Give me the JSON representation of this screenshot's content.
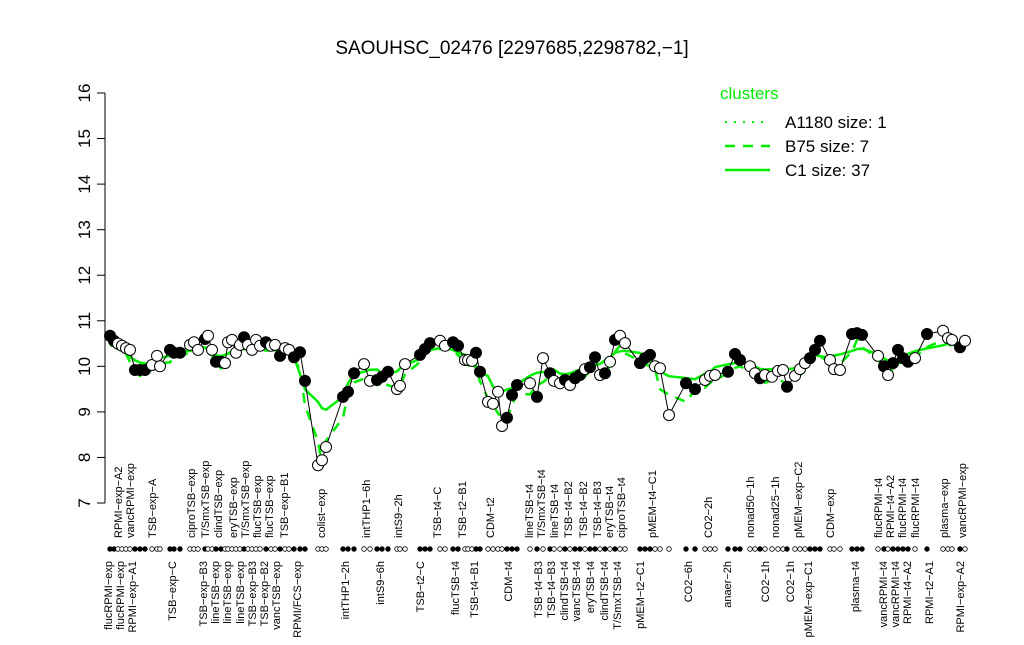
{
  "chart_data": {
    "type": "line",
    "title": "SAOUHSC_02476 [2297685,2298782,−1]",
    "xlabel": "",
    "ylabel": "",
    "ylim": [
      7,
      16
    ],
    "yticks": [
      7,
      8,
      9,
      10,
      11,
      12,
      13,
      14,
      15,
      16
    ],
    "grid": false,
    "legend": {
      "title": "clusters",
      "placement": "top-right",
      "color": "#00ee00",
      "entries": [
        {
          "label": "A1180 size: 1",
          "style": "dotted"
        },
        {
          "label": "B75 size: 7",
          "style": "dashed"
        },
        {
          "label": "C1 size: 37",
          "style": "solid"
        }
      ]
    },
    "colors": {
      "points": "#000000",
      "clusters": "#00ee00"
    },
    "x_labels_top": [
      "RPMI−exp−A2",
      "vancRPMI−exp",
      "TSB−exp−A",
      "ciproTSB−exp",
      "T/SmxTSB−exp",
      "clindTSB−exp",
      "eryTSB−exp",
      "T/SmxTSB−exp",
      "flucTSB−exp",
      "flucTSB−exp",
      "TSB−exp−B1",
      "colist−exp",
      "intTHP1−6h",
      "intS9−2h",
      "TSB−t4−C",
      "TSB−t2−B1",
      "CDM−t2",
      "lineTSB−t4",
      "T/SmxTSB−t4",
      "lineTSB−t4",
      "TSB−t4−B2",
      "TSB−t4−B2",
      "TSB−t4−B3",
      "eryTSB−t4",
      "ciproTSB−t4",
      "pMEM−t4−C1",
      "CO2−2h",
      "nonad50−1h",
      "nonad25−1h",
      "pMEM−exp−C2",
      "CDM−exp",
      "flucRPMI−t4",
      "RPMI−t4−A2",
      "flucRPMI−t4",
      "flucRPMI−t4",
      "plasma−exp",
      "vancRPMI−exp"
    ],
    "x_labels_bottom": [
      "flucRPMI−exp",
      "flucRPMI−exp",
      "RPMI−exp−A1",
      "TSB−exp−C",
      "TSB−exp−B3",
      "lineTSB−exp",
      "lineTSB−exp",
      "lineTSB−exp",
      "TSB−exp−B3",
      "TSB−exp−B2",
      "vancTSB−exp",
      "RPMI/FCS−exp",
      "intTHP1−2h",
      "intS9−6h",
      "TSB−t2−C",
      "flucTSB−t4",
      "TSB−t4−B1",
      "CDM−t4",
      "TSB−t4−B3",
      "TSB−t4−B3",
      "clindTSB−t4",
      "vancTSB−t4",
      "eryTSB−t4",
      "clindTSB−t4",
      "T/SmxTSB−t4",
      "pMEM−t2−C1",
      "CO2−6h",
      "anaer−2h",
      "CO2−1h",
      "CO2−1h",
      "pMEM−exp−C1",
      "plasma−t4",
      "vancRPMI−t4",
      "vancRPMI−t4",
      "RPMI−t4−A2",
      "RPMI−t2−A1",
      "RPMI−exp−A2"
    ],
    "values": [
      10.67,
      10.56,
      10.5,
      10.45,
      10.4,
      10.36,
      9.92,
      9.92,
      9.92,
      10.03,
      10.23,
      10.0,
      10.36,
      10.3,
      10.3,
      10.47,
      10.53,
      10.36,
      10.6,
      10.67,
      10.36,
      10.1,
      10.1,
      10.07,
      10.53,
      10.58,
      10.3,
      10.47,
      10.64,
      10.47,
      10.36,
      10.58,
      10.45,
      10.53,
      10.45,
      10.47,
      10.23,
      10.4,
      10.36,
      10.2,
      10.31,
      9.68,
      7.83,
      7.94,
      8.23,
      9.33,
      9.44,
      9.85,
      10.05,
      9.68,
      9.7,
      9.77,
      9.88,
      9.5,
      9.57,
      10.05,
      10.25,
      10.38,
      10.51,
      10.56,
      10.45,
      10.53,
      10.45,
      10.14,
      10.14,
      10.12,
      10.3,
      9.88,
      9.22,
      9.18,
      9.44,
      8.69,
      8.87,
      9.37,
      9.59,
      9.63,
      9.33,
      10.18,
      9.85,
      9.68,
      9.63,
      9.7,
      9.59,
      9.74,
      9.81,
      9.94,
      9.98,
      10.2,
      9.81,
      9.85,
      10.1,
      10.58,
      10.67,
      10.51,
      10.07,
      10.18,
      10.25,
      10.0,
      9.96,
      8.93,
      9.63,
      9.5,
      9.7,
      9.79,
      9.81,
      9.88,
      10.27,
      10.14,
      10.0,
      9.85,
      9.74,
      9.81,
      9.77,
      9.9,
      9.92,
      9.55,
      9.79,
      9.94,
      10.07,
      10.18,
      10.36,
      10.56,
      10.14,
      9.94,
      9.92,
      10.71,
      10.73,
      10.69,
      10.23,
      10.0,
      9.81,
      10.07,
      10.36,
      10.18,
      10.1,
      10.18,
      10.71,
      10.78,
      10.62,
      10.58,
      10.42,
      10.56
    ],
    "filled": [
      1,
      1,
      0,
      0,
      0,
      0,
      1,
      1,
      1,
      0,
      0,
      0,
      1,
      1,
      1,
      0,
      0,
      0,
      1,
      0,
      0,
      1,
      1,
      0,
      0,
      0,
      0,
      0,
      1,
      0,
      0,
      0,
      0,
      1,
      0,
      0,
      1,
      0,
      0,
      1,
      1,
      1,
      0,
      0,
      0,
      1,
      1,
      1,
      0,
      0,
      1,
      1,
      1,
      0,
      0,
      0,
      1,
      1,
      1,
      0,
      0,
      1,
      1,
      0,
      0,
      0,
      1,
      1,
      0,
      0,
      0,
      0,
      1,
      1,
      1,
      0,
      1,
      0,
      1,
      0,
      0,
      1,
      0,
      1,
      1,
      0,
      1,
      1,
      0,
      1,
      0,
      1,
      0,
      0,
      1,
      1,
      1,
      0,
      0,
      0,
      1,
      1,
      0,
      0,
      0,
      1,
      1,
      1,
      0,
      0,
      1,
      0,
      0,
      0,
      0,
      1,
      0,
      0,
      0,
      1,
      1,
      1,
      0,
      0,
      0,
      1,
      1,
      1,
      0,
      1,
      0,
      1,
      1,
      1,
      1,
      0,
      1,
      0,
      0,
      0,
      1,
      0
    ]
  }
}
